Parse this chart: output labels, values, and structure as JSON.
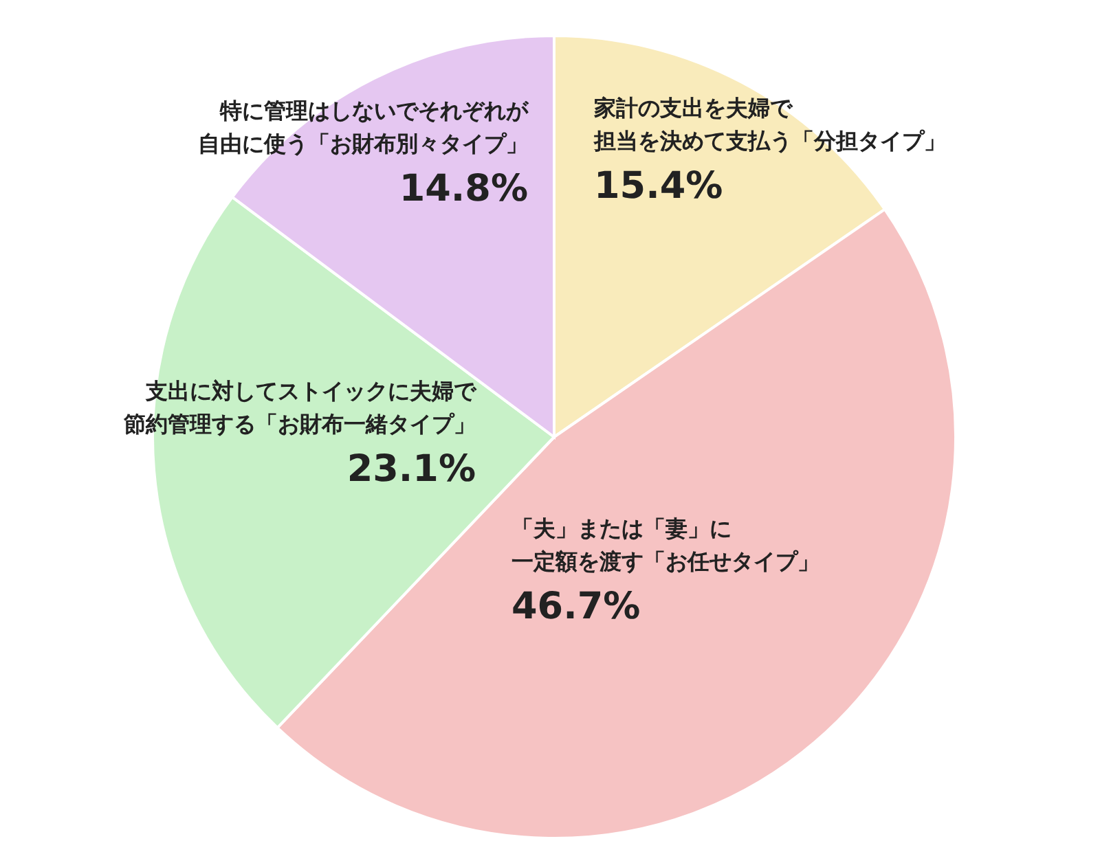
{
  "chart_data": {
    "type": "pie",
    "categories": [
      "家計の支出を夫婦で担当を決めて支払う「分担タイプ」",
      "「夫」または「妻」に一定額を渡す「お任せタイプ」",
      "支出に対してストイックに夫婦で節約管理する「お財布一緒タイプ」",
      "特に管理はしないでそれぞれが自由に使う「お財布別々タイプ」"
    ],
    "values": [
      15.4,
      46.7,
      23.1,
      14.8
    ],
    "value_labels": [
      "15.4%",
      "46.7%",
      "23.1%",
      "14.8%"
    ],
    "colors": [
      "#f9ebbb",
      "#f6c3c3",
      "#c8f1c8",
      "#e5c7f1"
    ],
    "legend": false
  }
}
